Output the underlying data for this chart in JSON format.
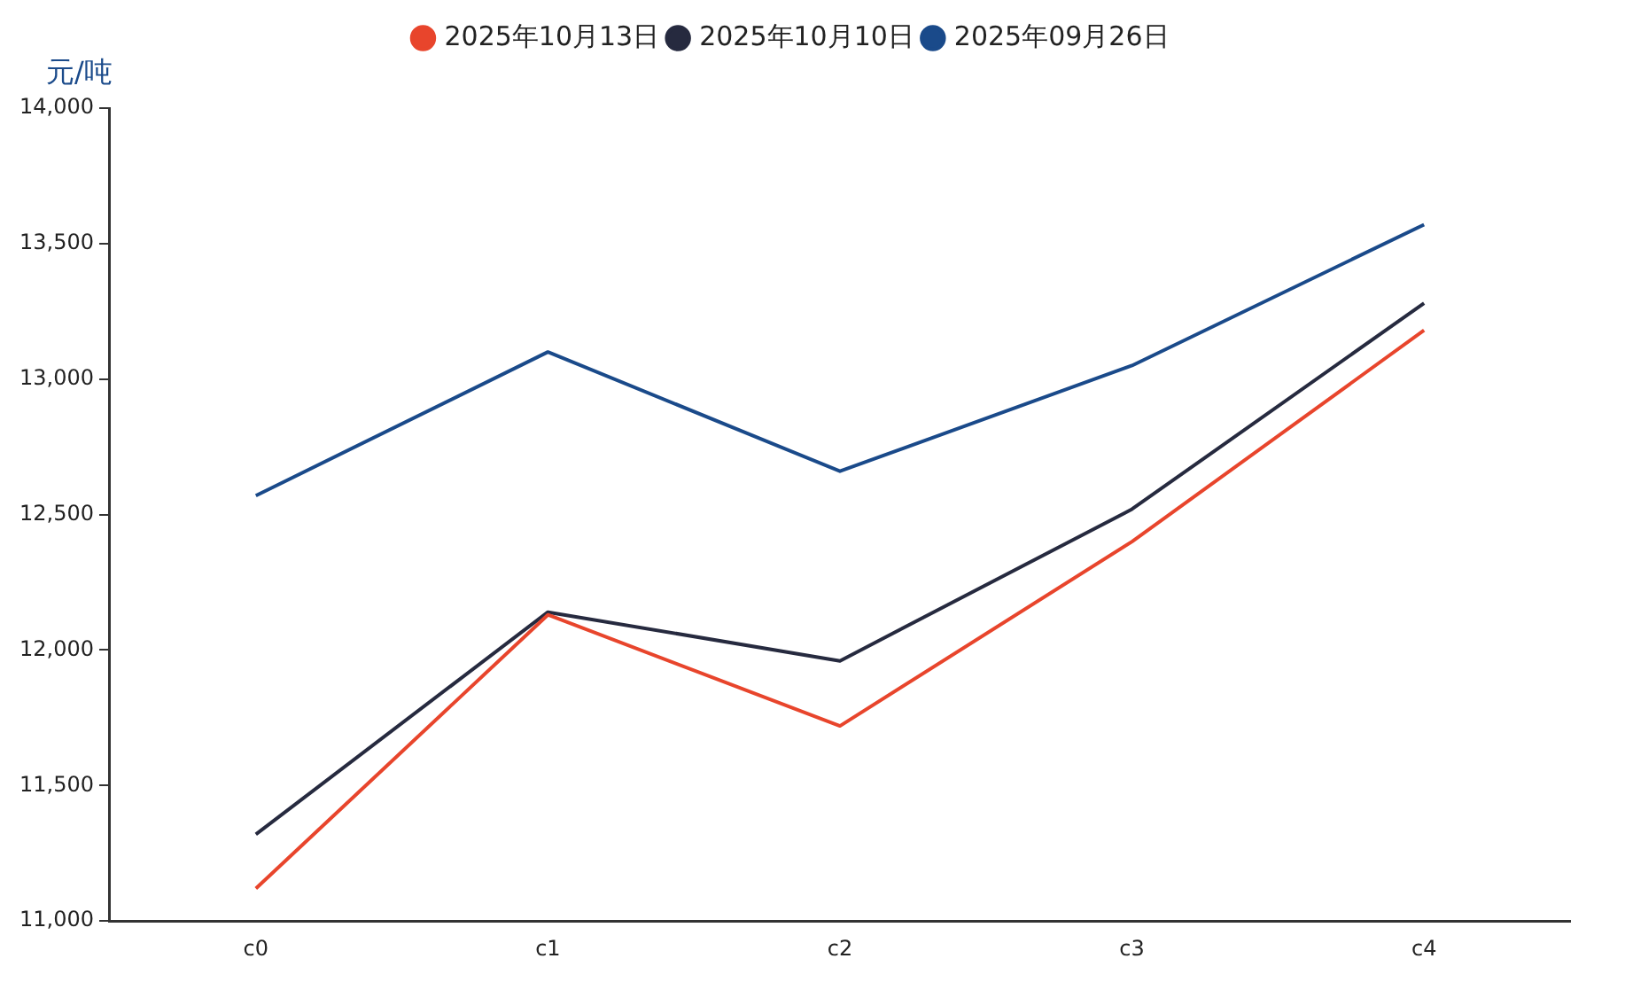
{
  "chart_data": {
    "type": "line",
    "ylabel": "元/吨",
    "categories": [
      "c0",
      "c1",
      "c2",
      "c3",
      "c4"
    ],
    "series": [
      {
        "name": "2025年10月13日",
        "color": "#e8452c",
        "values": [
          11120,
          12130,
          11720,
          12400,
          13180
        ]
      },
      {
        "name": "2025年10月10日",
        "color": "#262a3f",
        "values": [
          11320,
          12140,
          11960,
          12520,
          13280
        ]
      },
      {
        "name": "2025年09月26日",
        "color": "#1a4a8a",
        "values": [
          12570,
          13100,
          12660,
          13050,
          13570
        ]
      }
    ],
    "ylim": [
      11000,
      14000
    ],
    "yticks": [
      {
        "value": 11000,
        "label": "11,000"
      },
      {
        "value": 11500,
        "label": "11,500"
      },
      {
        "value": 12000,
        "label": "12,000"
      },
      {
        "value": 12500,
        "label": "12,500"
      },
      {
        "value": 13000,
        "label": "13,000"
      },
      {
        "value": 13500,
        "label": "13,500"
      },
      {
        "value": 14000,
        "label": "14,000"
      }
    ],
    "grid": false,
    "legend": "top",
    "marker": "none",
    "line_style": "solid"
  }
}
